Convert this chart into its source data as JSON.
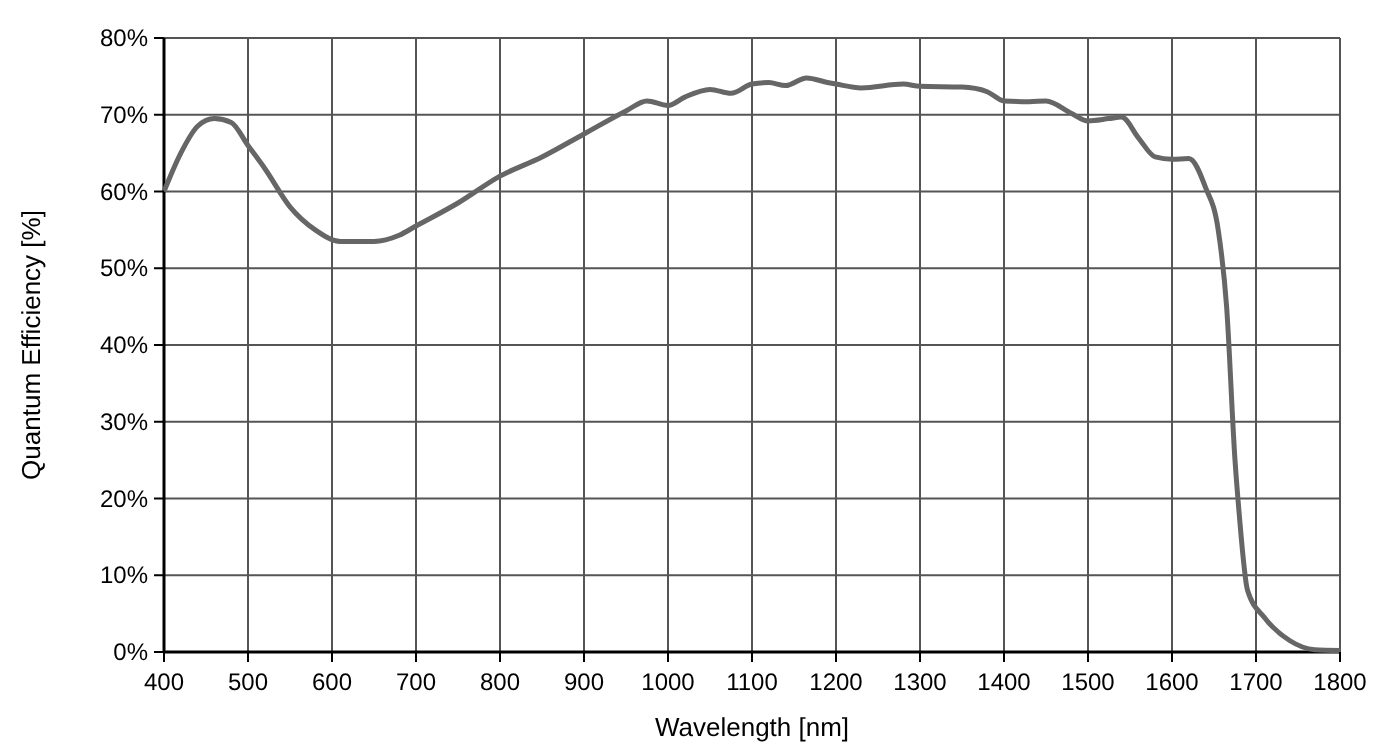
{
  "chart_data": {
    "type": "line",
    "xlabel": "Wavelength [nm]",
    "ylabel": "Quantum Efficiency [%]",
    "xlim": [
      400,
      1800
    ],
    "xticks": [
      400,
      500,
      600,
      700,
      800,
      900,
      1000,
      1100,
      1200,
      1300,
      1400,
      1500,
      1600,
      1700,
      1800
    ],
    "ylim": [
      0,
      80
    ],
    "yticks": [
      {
        "value": 0,
        "label": "0%"
      },
      {
        "value": 10,
        "label": "10%"
      },
      {
        "value": 20,
        "label": "20%"
      },
      {
        "value": 30,
        "label": "30%"
      },
      {
        "value": 40,
        "label": "40%"
      },
      {
        "value": 50,
        "label": "50%"
      },
      {
        "value": 60,
        "label": "60%"
      },
      {
        "value": 70,
        "label": "70%"
      },
      {
        "value": 80,
        "label": "80%"
      }
    ],
    "grid": true,
    "marker": "none",
    "line_style": "solid",
    "series": [
      {
        "color": "#666666",
        "x": [
          400,
          420,
          440,
          460,
          480,
          500,
          520,
          550,
          580,
          610,
          650,
          680,
          700,
          750,
          800,
          850,
          900,
          950,
          975,
          1000,
          1020,
          1050,
          1075,
          1100,
          1120,
          1140,
          1165,
          1190,
          1200,
          1230,
          1280,
          1300,
          1350,
          1380,
          1400,
          1430,
          1450,
          1480,
          1500,
          1525,
          1540,
          1560,
          1580,
          1600,
          1620,
          1640,
          1655,
          1665,
          1675,
          1680,
          1690,
          1710,
          1740,
          1770,
          1800
        ],
        "values": [
          60,
          65,
          68.5,
          69.5,
          69,
          66,
          63,
          58,
          55,
          53.5,
          53.5,
          54.3,
          55.5,
          58.5,
          62,
          64.5,
          67.5,
          70.5,
          71.8,
          71.2,
          72.3,
          73.3,
          72.8,
          74,
          74.2,
          73.8,
          74.8,
          74.2,
          74,
          73.5,
          74,
          73.7,
          73.6,
          73,
          71.8,
          71.7,
          71.8,
          70.2,
          69.2,
          69.5,
          69.7,
          67,
          64.5,
          64.2,
          64.3,
          60.5,
          55,
          45,
          25,
          18,
          8,
          4.5,
          1.5,
          0.3,
          0.2
        ]
      }
    ]
  }
}
